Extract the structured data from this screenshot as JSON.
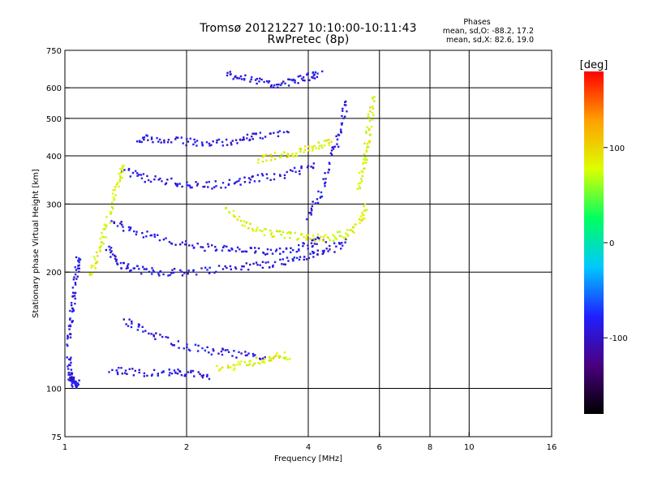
{
  "header": {
    "title_line1": "Tromsø 20121227 10:10:00-10:11:43",
    "title_line2": "RwPretec (8p)"
  },
  "phase_info": {
    "heading": "Phases",
    "line_o": "mean, sd,O: -88.2, 17.2",
    "line_x": "mean, sd,X:  82.6, 19.0"
  },
  "chart_data": {
    "type": "scatter",
    "xlabel": "Frequency [MHz]",
    "ylabel": "Stationary phase Virtual Height [km]",
    "xscale": "log",
    "yscale": "log",
    "xlim": [
      1,
      16
    ],
    "ylim": [
      75,
      750
    ],
    "x_ticks": [
      1,
      2,
      4,
      6,
      8,
      10,
      16
    ],
    "x_tick_labels": [
      "1",
      "2",
      "4",
      "6",
      "8",
      "10",
      "16"
    ],
    "y_ticks": [
      75,
      100,
      200,
      300,
      400,
      500,
      600,
      750
    ],
    "y_tick_labels": [
      "75",
      "100",
      "200",
      "300",
      "400",
      "500",
      "600",
      "750"
    ],
    "grid_x": [
      2,
      4,
      6,
      8,
      10
    ],
    "grid_y": [
      100,
      200,
      300,
      400,
      500,
      600
    ],
    "grid": true,
    "colorbar": {
      "label": "[deg]",
      "range": [
        -180,
        180
      ],
      "ticks": [
        -100,
        0,
        100
      ],
      "tick_labels": [
        "-100",
        "0",
        "100"
      ],
      "colormap": [
        "#000000",
        "#4a0080",
        "#2020ff",
        "#00c8ff",
        "#00ff60",
        "#dcff00",
        "#ffa000",
        "#ff0000"
      ]
    },
    "series": [
      {
        "name": "O",
        "phase_mean": -88.2,
        "phase_sd": 17.2,
        "traces": [
          {
            "x": [
              1.02,
              1.03,
              1.04,
              1.06,
              1.08
            ],
            "y": [
              120,
              108,
              105,
              102,
              104
            ]
          },
          {
            "x": [
              1.02,
              1.03,
              1.05,
              1.07,
              1.08
            ],
            "y": [
              130,
              150,
              170,
              200,
              220
            ]
          },
          {
            "x": [
              1.3,
              1.5,
              1.8,
              2.0,
              2.3
            ],
            "y": [
              112,
              110,
              110,
              109,
              108
            ]
          },
          {
            "x": [
              1.28,
              1.35,
              1.5,
              1.7,
              2.0,
              2.5,
              3.0,
              3.5,
              4.0,
              4.5,
              5.0
            ],
            "y": [
              232,
              210,
              203,
              200,
              200,
              205,
              208,
              213,
              220,
              228,
              240
            ]
          },
          {
            "x": [
              1.3,
              1.5,
              1.8,
              2.2,
              2.6,
              3.0,
              3.5,
              4.0,
              4.4
            ],
            "y": [
              270,
              255,
              240,
              232,
              228,
              226,
              228,
              235,
              245
            ]
          },
          {
            "x": [
              4.0,
              4.3,
              4.6,
              4.8,
              5.0
            ],
            "y": [
              280,
              320,
              400,
              470,
              560
            ]
          },
          {
            "x": [
              1.4,
              1.6,
              1.9,
              2.2,
              2.6,
              3.0,
              3.6,
              4.2
            ],
            "y": [
              365,
              350,
              340,
              335,
              340,
              350,
              360,
              380
            ]
          },
          {
            "x": [
              1.5,
              1.7,
              2.0,
              2.3,
              2.7,
              3.0,
              3.6
            ],
            "y": [
              445,
              440,
              435,
              430,
              440,
              450,
              460
            ]
          },
          {
            "x": [
              2.5,
              2.8,
              3.2,
              3.6,
              4.0,
              4.3
            ],
            "y": [
              650,
              640,
              610,
              620,
              640,
              650
            ]
          },
          {
            "x": [
              1.4,
              1.6,
              1.9,
              2.3,
              2.7,
              3.2
            ],
            "y": [
              150,
              140,
              130,
              125,
              122,
              120
            ]
          }
        ]
      },
      {
        "name": "X",
        "phase_mean": 82.6,
        "phase_sd": 19.0,
        "traces": [
          {
            "x": [
              1.15,
              1.2,
              1.25,
              1.3,
              1.35,
              1.4
            ],
            "y": [
              195,
              220,
              250,
              290,
              340,
              380
            ]
          },
          {
            "x": [
              2.5,
              2.8,
              3.2,
              3.6,
              4.0,
              4.5,
              5.0,
              5.4,
              5.6
            ],
            "y": [
              290,
              265,
              252,
              248,
              245,
              245,
              252,
              270,
              300
            ]
          },
          {
            "x": [
              5.3,
              5.5,
              5.6,
              5.7,
              5.8
            ],
            "y": [
              330,
              380,
              430,
              500,
              580
            ]
          },
          {
            "x": [
              3.0,
              3.4,
              3.8,
              4.2,
              4.6
            ],
            "y": [
              390,
              400,
              410,
              420,
              440
            ]
          },
          {
            "x": [
              2.4,
              2.7,
              3.0,
              3.3,
              3.6
            ],
            "y": [
              112,
              115,
              118,
              120,
              122
            ]
          }
        ]
      }
    ]
  }
}
